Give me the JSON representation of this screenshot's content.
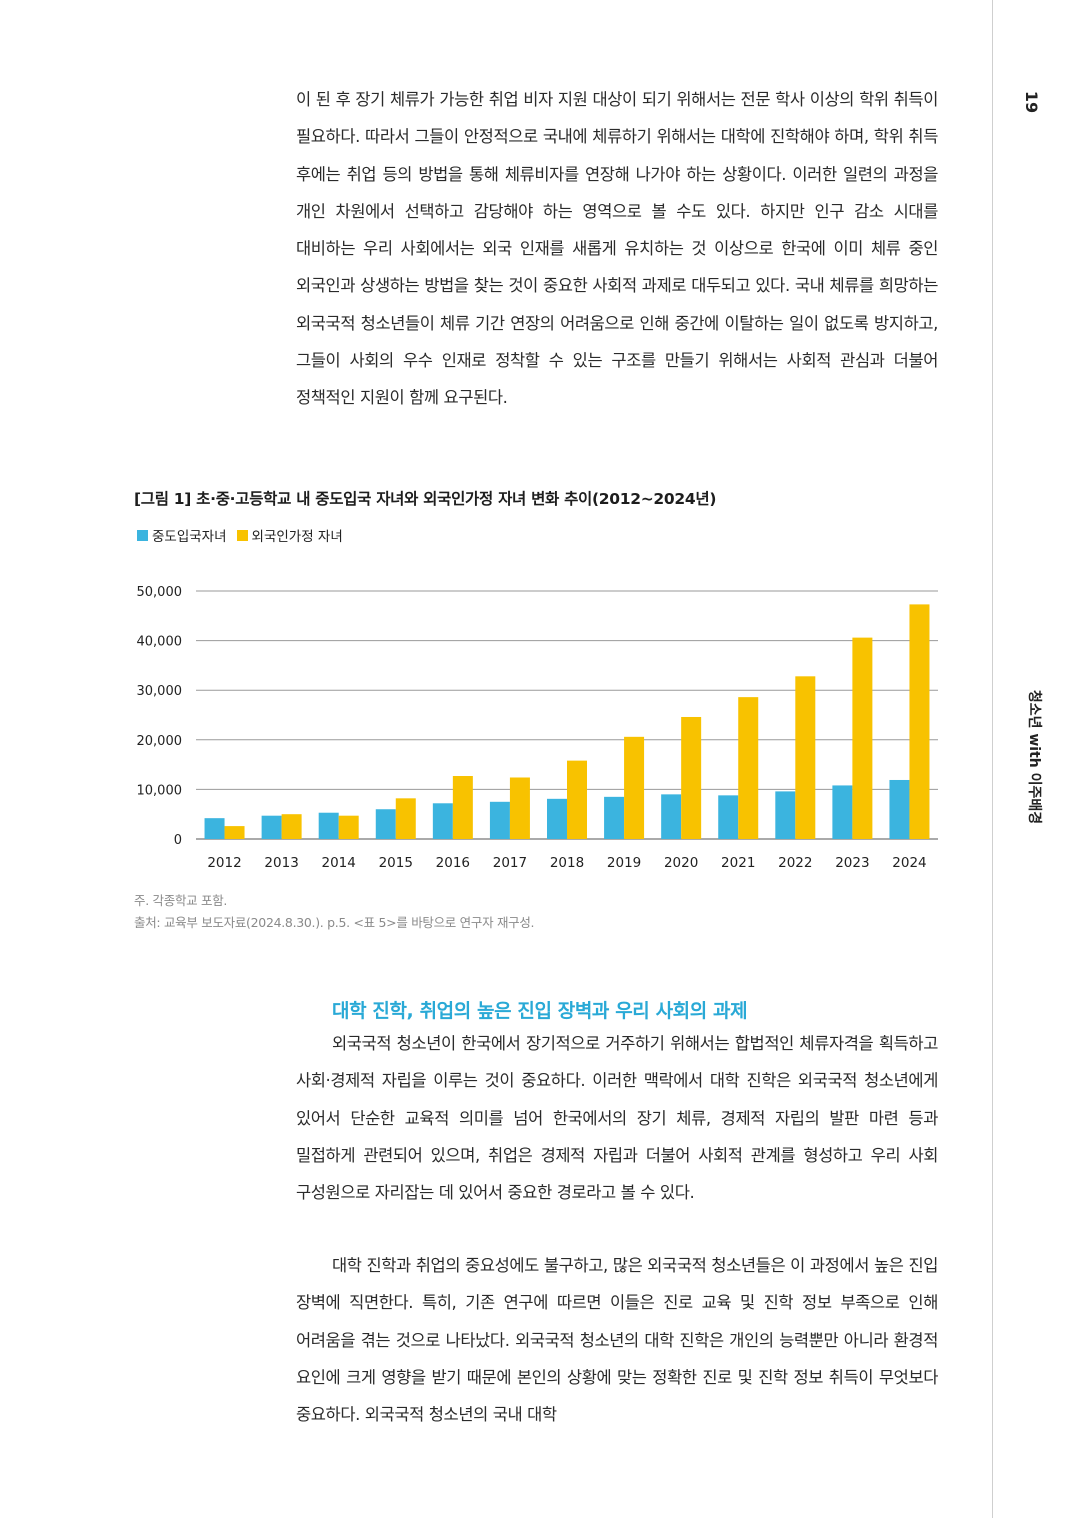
{
  "page_number": "19",
  "running_title": "청소년 with 이주배경",
  "paragraph_top": "이 된 후 장기 체류가 가능한 취업 비자 지원 대상이 되기 위해서는 전문 학사 이상의 학위 취득이 필요하다. 따라서 그들이 안정적으로 국내에 체류하기 위해서는 대학에 진학해야 하며, 학위 취득 후에는 취업 등의 방법을 통해 체류비자를 연장해 나가야 하는 상황이다. 이러한 일련의 과정을 개인 차원에서 선택하고 감당해야 하는 영역으로 볼 수도 있다. 하지만 인구 감소 시대를 대비하는 우리 사회에서는 외국 인재를 새롭게 유치하는 것 이상으로 한국에 이미 체류 중인 외국인과 상생하는 방법을 찾는 것이 중요한 사회적 과제로 대두되고 있다. 국내 체류를 희망하는 외국국적 청소년들이 체류 기간 연장의 어려움으로 인해 중간에 이탈하는 일이 없도록 방지하고, 그들이 사회의 우수 인재로 정착할 수 있는 구조를 만들기 위해서는 사회적 관심과 더불어 정책적인 지원이 함께 요구된다.",
  "figure": {
    "title": "[그림 1] 초·중·고등학교 내 중도입국 자녀와 외국인가정 자녀 변화 추이(2012~2024년)",
    "note": "주. 각종학교 포함.",
    "source": "출처: 교육부 보도자료(2024.8.30.). p.5. <표 5>를 바탕으로 연구자 재구성."
  },
  "chart_data": {
    "type": "bar",
    "title": "[그림 1] 초·중·고등학교 내 중도입국 자녀와 외국인가정 자녀 변화 추이(2012~2024년)",
    "categories": [
      "2012",
      "2013",
      "2014",
      "2015",
      "2016",
      "2017",
      "2018",
      "2019",
      "2020",
      "2021",
      "2022",
      "2023",
      "2024"
    ],
    "series": [
      {
        "name": "중도입국자녀",
        "color": "#3bb4df",
        "values": [
          4200,
          4700,
          5300,
          6000,
          7200,
          7500,
          8100,
          8500,
          9000,
          8800,
          9600,
          10800,
          11900
        ]
      },
      {
        "name": "외국인가정 자녀",
        "color": "#f8c200",
        "values": [
          2600,
          5000,
          4700,
          8200,
          12700,
          12400,
          15800,
          20600,
          24600,
          28600,
          32800,
          40600,
          47300
        ]
      }
    ],
    "ylim": [
      0,
      50000
    ],
    "yticks": [
      "0",
      "10,000",
      "20,000",
      "30,000",
      "40,000",
      "50,000"
    ],
    "xlabel": "",
    "ylabel": "",
    "legend_position": "top-left",
    "grid": true
  },
  "section_heading": "대학 진학, 취업의 높은 진입 장벽과 우리 사회의 과제",
  "paragraph_2": "외국국적 청소년이 한국에서 장기적으로 거주하기 위해서는 합법적인 체류자격을 획득하고 사회·경제적 자립을 이루는 것이 중요하다. 이러한 맥락에서 대학 진학은 외국국적 청소년에게 있어서 단순한 교육적 의미를 넘어 한국에서의 장기 체류, 경제적 자립의 발판 마련 등과 밀접하게 관련되어 있으며, 취업은 경제적 자립과 더불어 사회적 관계를 형성하고 우리 사회 구성원으로 자리잡는 데 있어서 중요한 경로라고 볼 수 있다.",
  "paragraph_3": "대학 진학과 취업의 중요성에도 불구하고, 많은 외국국적 청소년들은 이 과정에서 높은 진입 장벽에 직면한다. 특히, 기존 연구에 따르면 이들은 진로 교육 및 진학 정보 부족으로 인해 어려움을 겪는 것으로 나타났다. 외국국적 청소년의 대학 진학은 개인의 능력뿐만 아니라 환경적 요인에 크게 영향을 받기 때문에 본인의 상황에 맞는 정확한 진로 및 진학 정보 취득이 무엇보다 중요하다. 외국국적 청소년의 국내 대학"
}
